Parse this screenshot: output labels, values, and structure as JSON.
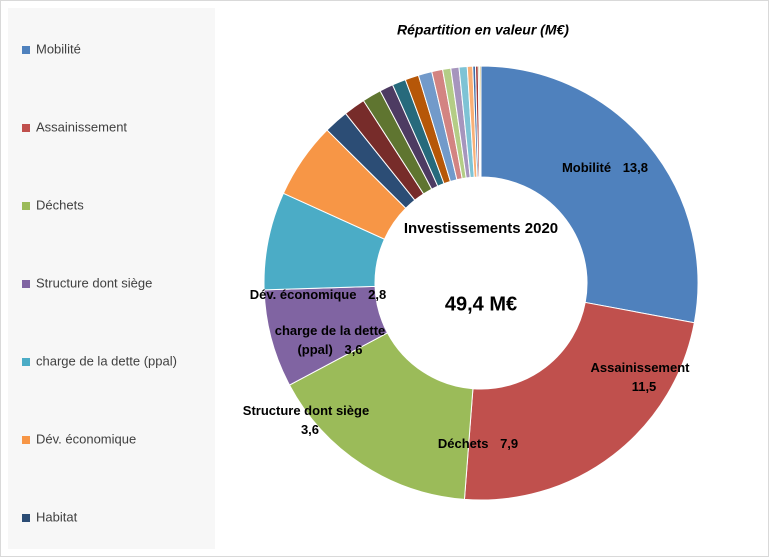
{
  "chart_data": {
    "type": "donut",
    "title": "Répartition en valeur (M€)",
    "center_title": "Investissements 2020",
    "center_total": "49,4 M€",
    "categories": [
      "Mobilité",
      "Assainissement",
      "Déchets",
      "Structure dont siège",
      "charge de la dette (ppal)",
      "Dév. économique",
      "Habitat",
      null,
      null,
      null,
      null,
      null,
      null,
      null,
      null,
      null,
      null,
      null,
      null,
      null,
      null,
      null
    ],
    "values": [
      13.8,
      11.5,
      7.9,
      3.6,
      3.6,
      2.8,
      0.9,
      0.8,
      0.7,
      0.5,
      0.5,
      0.5,
      0.5,
      0.4,
      0.3,
      0.3,
      0.3,
      0.2,
      0.1,
      0.1,
      0.05,
      0.05
    ],
    "value_labels": [
      "13,8",
      "11,5",
      "7,9",
      "3,6",
      "3,6",
      "2,8",
      null,
      null,
      null,
      null,
      null,
      null,
      null,
      null,
      null,
      null,
      null,
      null,
      null,
      null,
      null,
      null
    ],
    "colors": [
      "#4f81bd",
      "#c0504d",
      "#9bbb59",
      "#8064a2",
      "#4bacc6",
      "#f79646",
      "#2c4d75",
      "#772c2a",
      "#5f7530",
      "#4d3b62",
      "#276a7c",
      "#b65708",
      "#729aca",
      "#d38482",
      "#b4cd86",
      "#a695bd",
      "#7ec3d5",
      "#f9b077",
      "#3f6fa8",
      "#a43c39",
      "#7e9b44",
      "#c09a2e"
    ],
    "legend": "left"
  }
}
